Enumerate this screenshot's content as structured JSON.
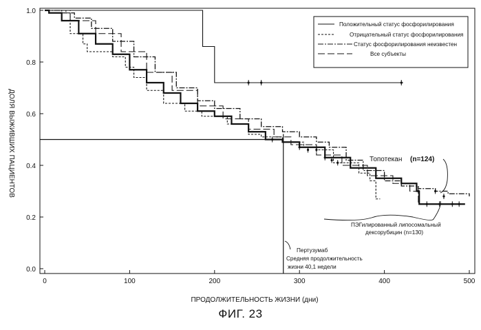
{
  "chart_data": {
    "type": "line",
    "title": "",
    "xlabel": "ПРОДОЛЖИТЕЛЬНОСТЬ ЖИЗНИ (дни)",
    "ylabel": "ДОЛЯ ВЫЖИВШИХ ПАЦИЕНТОВ",
    "xlim": [
      0,
      500
    ],
    "ylim": [
      0,
      1.0
    ],
    "xticks": [
      0,
      100,
      200,
      300,
      400,
      500
    ],
    "yticks": [
      0.0,
      0.2,
      0.4,
      0.6,
      0.8,
      1.0
    ],
    "ytick_labels": [
      "0.0",
      "0.2",
      "0.4",
      "0.6",
      "0.8",
      "1.0"
    ],
    "legend_position": "top-right",
    "series": [
      {
        "name": "Положительный статус фосфорилирования",
        "style": "solid",
        "points": [
          [
            0,
            1.0
          ],
          [
            186,
            1.0
          ],
          [
            186,
            0.86
          ],
          [
            200,
            0.86
          ],
          [
            200,
            0.72
          ],
          [
            300,
            0.72
          ],
          [
            422,
            0.72
          ]
        ],
        "censor": [
          [
            240,
            0.72
          ],
          [
            255,
            0.72
          ],
          [
            420,
            0.72
          ]
        ]
      },
      {
        "name": "Отрицательный статус фосфорилирования",
        "style": "dashed",
        "points": [
          [
            0,
            1.0
          ],
          [
            25,
            0.99
          ],
          [
            30,
            0.91
          ],
          [
            45,
            0.87
          ],
          [
            50,
            0.84
          ],
          [
            80,
            0.82
          ],
          [
            95,
            0.78
          ],
          [
            105,
            0.74
          ],
          [
            120,
            0.69
          ],
          [
            140,
            0.64
          ],
          [
            165,
            0.61
          ],
          [
            185,
            0.59
          ],
          [
            215,
            0.56
          ],
          [
            240,
            0.52
          ],
          [
            255,
            0.51
          ],
          [
            280,
            0.49
          ],
          [
            305,
            0.47
          ],
          [
            320,
            0.46
          ],
          [
            340,
            0.41
          ],
          [
            370,
            0.37
          ],
          [
            383,
            0.34
          ],
          [
            390,
            0.27
          ],
          [
            395,
            0.27
          ]
        ],
        "censor": [
          [
            268,
            0.5
          ],
          [
            320,
            0.46
          ],
          [
            338,
            0.42
          ]
        ]
      },
      {
        "name": "Статус фосфорилирования неизвестен",
        "style": "dash-dot",
        "points": [
          [
            0,
            1.0
          ],
          [
            20,
            0.99
          ],
          [
            35,
            0.97
          ],
          [
            55,
            0.93
          ],
          [
            80,
            0.88
          ],
          [
            105,
            0.82
          ],
          [
            130,
            0.76
          ],
          [
            155,
            0.7
          ],
          [
            180,
            0.65
          ],
          [
            200,
            0.62
          ],
          [
            230,
            0.58
          ],
          [
            255,
            0.55
          ],
          [
            280,
            0.53
          ],
          [
            300,
            0.51
          ],
          [
            320,
            0.49
          ],
          [
            335,
            0.47
          ],
          [
            355,
            0.42
          ],
          [
            375,
            0.38
          ],
          [
            400,
            0.34
          ],
          [
            420,
            0.32
          ],
          [
            440,
            0.31
          ],
          [
            460,
            0.3
          ],
          [
            475,
            0.29
          ],
          [
            500,
            0.28
          ]
        ],
        "censor": [
          [
            440,
            0.3
          ],
          [
            460,
            0.3
          ],
          [
            470,
            0.28
          ]
        ]
      },
      {
        "name": "Все субъекты",
        "style": "long-dash",
        "points": [
          [
            0,
            1.0
          ],
          [
            30,
            0.96
          ],
          [
            60,
            0.91
          ],
          [
            90,
            0.84
          ],
          [
            120,
            0.76
          ],
          [
            150,
            0.69
          ],
          [
            180,
            0.63
          ],
          [
            210,
            0.58
          ],
          [
            240,
            0.54
          ],
          [
            270,
            0.51
          ],
          [
            290,
            0.48
          ],
          [
            320,
            0.44
          ],
          [
            350,
            0.4
          ],
          [
            380,
            0.36
          ],
          [
            410,
            0.33
          ],
          [
            430,
            0.3
          ],
          [
            440,
            0.25
          ],
          [
            490,
            0.25
          ]
        ],
        "censor": [
          [
            450,
            0.25
          ],
          [
            465,
            0.25
          ],
          [
            480,
            0.25
          ],
          [
            488,
            0.25
          ]
        ]
      },
      {
        "name": "",
        "style": "solid-thick",
        "points": [
          [
            0,
            1.0
          ],
          [
            5,
            0.99
          ],
          [
            20,
            0.96
          ],
          [
            40,
            0.91
          ],
          [
            60,
            0.87
          ],
          [
            80,
            0.83
          ],
          [
            100,
            0.77
          ],
          [
            120,
            0.72
          ],
          [
            140,
            0.68
          ],
          [
            160,
            0.64
          ],
          [
            180,
            0.61
          ],
          [
            200,
            0.59
          ],
          [
            220,
            0.56
          ],
          [
            240,
            0.53
          ],
          [
            260,
            0.5
          ],
          [
            280,
            0.49
          ],
          [
            300,
            0.47
          ],
          [
            330,
            0.43
          ],
          [
            360,
            0.39
          ],
          [
            390,
            0.35
          ],
          [
            420,
            0.33
          ],
          [
            438,
            0.3
          ],
          [
            441,
            0.25
          ],
          [
            495,
            0.25
          ]
        ],
        "censor": [
          [
            300,
            0.47
          ],
          [
            310,
            0.46
          ],
          [
            330,
            0.43
          ],
          [
            345,
            0.41
          ]
        ]
      }
    ],
    "reference_lines": {
      "horizontal_y": 0.5,
      "horizontal_x_end": 281,
      "vertical_x": 281
    },
    "annotations": [
      {
        "lines": [
          "Топотекан",
          "(n=124)"
        ]
      },
      {
        "lines": [
          "ПЭГилированный липосомальный",
          "дексорубицин (n=130)"
        ]
      },
      {
        "lines": [
          "Пертузумаб",
          "Средняя продолжительность",
          "жизни 40,1 недели"
        ]
      }
    ]
  },
  "figure_caption": "ФИГ. 23"
}
